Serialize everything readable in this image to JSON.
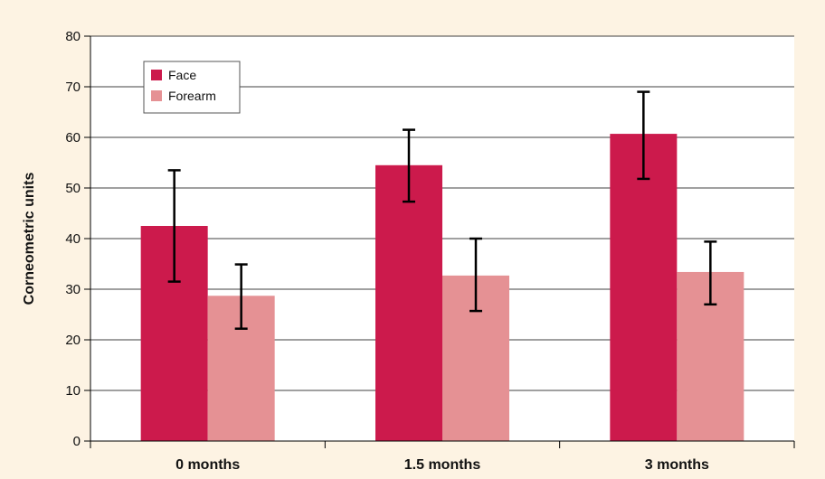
{
  "chart_data": {
    "type": "bar",
    "categories": [
      "0 months",
      "1.5 months",
      "3 months"
    ],
    "series": [
      {
        "name": "Face",
        "color": "#cc1a4c",
        "values": [
          42.5,
          54.5,
          60.7
        ],
        "error_low": [
          31.5,
          47.3,
          51.8
        ],
        "error_high": [
          53.5,
          61.5,
          69.0
        ]
      },
      {
        "name": "Forearm",
        "color": "#e59194",
        "values": [
          28.7,
          32.7,
          33.4
        ],
        "error_low": [
          22.2,
          25.7,
          27.0
        ],
        "error_high": [
          34.9,
          40.0,
          39.4
        ]
      }
    ],
    "ylabel": "Corneometric units",
    "xlabel": "",
    "ylim": [
      0,
      80
    ],
    "yticks": [
      0,
      10,
      20,
      30,
      40,
      50,
      60,
      70,
      80
    ],
    "grid": true,
    "legend": "top-left"
  },
  "colors": {
    "background": "#fdf3e3",
    "plot_area": "#ffffff",
    "grid": "#000000"
  }
}
